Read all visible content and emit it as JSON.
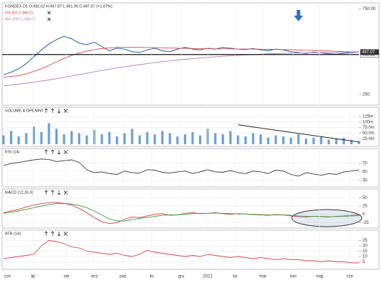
{
  "chart_data": [
    {
      "type": "line",
      "title": "NGNDEX D1 O:492.62 H:497.87 L:491.99 C:497.07 (+1.07%)",
      "xlim": [
        0,
        47
      ],
      "ylim": [
        200,
        760
      ],
      "yticks": [
        250,
        {
          "value": 750,
          "label": "750.00"
        }
      ],
      "hline": {
        "value": 483.13,
        "label": "483.13"
      },
      "last_label": {
        "value": 497.07,
        "label": "497.07"
      },
      "series": [
        {
          "color": "#1f5fa6",
          "values": [
            365,
            380,
            400,
            430,
            470,
            510,
            545,
            570,
            590,
            575,
            550,
            540,
            555,
            530,
            505,
            520,
            515,
            500,
            495,
            510,
            520,
            505,
            500,
            515,
            525,
            515,
            510,
            520,
            515,
            525,
            520,
            515,
            512,
            518,
            510,
            505,
            515,
            510,
            500,
            495,
            490,
            498,
            493,
            488,
            485,
            490,
            494,
            497.07
          ]
        },
        {
          "name": "MA (50 C,MA,0)",
          "color": "#d9434a",
          "values": [
            350,
            355,
            360,
            370,
            385,
            400,
            420,
            440,
            460,
            478,
            492,
            503,
            512,
            518,
            522,
            525,
            526,
            526,
            525,
            524,
            523,
            522,
            521,
            520,
            519,
            518,
            517,
            517,
            516,
            516,
            516,
            515,
            515,
            515,
            514,
            513,
            513,
            512,
            511,
            510,
            508,
            507,
            505,
            504,
            502,
            500,
            499,
            498
          ]
        },
        {
          "name": "MA (200 C,MA,0)",
          "color": "#a77fcc",
          "values": [
            300,
            305,
            310,
            316,
            322,
            328,
            335,
            342,
            350,
            358,
            366,
            374,
            382,
            390,
            398,
            405,
            412,
            418,
            424,
            430,
            436,
            441,
            446,
            451,
            455,
            459,
            463,
            467,
            470,
            473,
            476,
            479,
            481,
            483,
            485,
            487,
            489,
            490,
            491,
            492,
            493,
            494,
            494,
            495,
            495,
            496,
            496,
            496
          ]
        }
      ]
    },
    {
      "type": "bar",
      "title": "VOLUME & OPENINT",
      "xlim": [
        0,
        47
      ],
      "ylim": [
        0,
        135
      ],
      "color": "#6d9fd6",
      "yticks": [
        {
          "value": 25,
          "label": "25.0m"
        },
        {
          "value": 50,
          "label": "50.0m"
        },
        {
          "value": 75,
          "label": "75.0m"
        },
        {
          "value": 100,
          "label": "100m"
        },
        {
          "value": 125,
          "label": "125m"
        }
      ],
      "values": [
        40,
        60,
        35,
        50,
        80,
        55,
        95,
        70,
        45,
        60,
        50,
        40,
        65,
        45,
        55,
        35,
        50,
        70,
        40,
        55,
        45,
        60,
        50,
        35,
        45,
        55,
        40,
        70,
        50,
        45,
        60,
        40,
        35,
        50,
        45,
        30,
        40,
        35,
        30,
        45,
        25,
        30,
        35,
        20,
        25,
        30,
        20,
        15
      ],
      "trend_x": [
        31,
        47
      ],
      "trend_values": [
        88,
        10
      ]
    },
    {
      "type": "line",
      "title": "RSI (14)",
      "xlim": [
        0,
        47
      ],
      "ylim": [
        20,
        88
      ],
      "yticks": [
        30,
        50,
        70
      ],
      "series": [
        {
          "color": "#333333",
          "values": [
            65,
            70,
            72,
            75,
            78,
            80,
            79,
            74,
            76,
            78,
            72,
            55,
            48,
            50,
            46,
            44,
            52,
            48,
            47,
            55,
            54,
            49,
            47,
            50,
            52,
            46,
            50,
            55,
            50,
            49,
            53,
            48,
            46,
            52,
            50,
            46,
            54,
            52,
            44,
            40,
            48,
            45,
            42,
            46,
            44,
            50,
            52,
            55
          ]
        }
      ]
    },
    {
      "type": "line",
      "title": "MACD (12,26,9)",
      "xlim": [
        0,
        47
      ],
      "ylim": [
        -35,
        55
      ],
      "yticks": [
        -25,
        0,
        25,
        50
      ],
      "series": [
        {
          "color": "#d23b3b",
          "values": [
            5,
            10,
            15,
            22,
            28,
            32,
            35,
            36,
            33,
            28,
            18,
            5,
            -10,
            -22,
            -28,
            -25,
            -15,
            -8,
            -10,
            -5,
            0,
            2,
            -3,
            -2,
            3,
            5,
            2,
            3,
            5,
            2,
            0,
            2,
            1,
            -1,
            -2,
            -3,
            -1,
            -2,
            -5,
            -7,
            -8,
            -6,
            -7,
            -8,
            -6,
            -5,
            -3,
            -1
          ]
        },
        {
          "color": "#3a9a3a",
          "values": [
            3,
            6,
            10,
            15,
            20,
            25,
            29,
            32,
            33,
            31,
            27,
            20,
            10,
            -2,
            -14,
            -20,
            -20,
            -16,
            -12,
            -10,
            -6,
            -3,
            -2,
            -2,
            0,
            2,
            3,
            3,
            4,
            3,
            2,
            1,
            1,
            0,
            -1,
            -2,
            -2,
            -2,
            -3,
            -5,
            -6,
            -6,
            -6,
            -7,
            -7,
            -6,
            -5,
            -4
          ]
        }
      ]
    },
    {
      "type": "line",
      "title": "ATR (14)",
      "xlim": [
        0,
        47
      ],
      "ylim": [
        0,
        28
      ],
      "yticks": [
        5,
        10,
        15,
        20,
        25
      ],
      "xticks": [
        {
          "value": 0.5,
          "label": "cze"
        },
        {
          "value": 3.9,
          "label": "lip"
        },
        {
          "value": 8.3,
          "label": "sie"
        },
        {
          "value": 12,
          "label": "wrz"
        },
        {
          "value": 15.8,
          "label": "paź"
        },
        {
          "value": 19.6,
          "label": "lis"
        },
        {
          "value": 23.5,
          "label": "gru"
        },
        {
          "value": 27,
          "label": "2021"
        },
        {
          "value": 30.6,
          "label": "lut"
        },
        {
          "value": 34.3,
          "label": "mar"
        },
        {
          "value": 38.3,
          "label": "kwi"
        },
        {
          "value": 41.8,
          "label": "maj"
        },
        {
          "value": 45.8,
          "label": "cze"
        }
      ],
      "series": [
        {
          "color": "#d9434a",
          "values": [
            8,
            9,
            10,
            11,
            12,
            20,
            25,
            24,
            22,
            19,
            18,
            15,
            14,
            13,
            12,
            13,
            11,
            10,
            12,
            16,
            14,
            13,
            12,
            11,
            10,
            11,
            10,
            12,
            11,
            10,
            9,
            10,
            9,
            8,
            9,
            8,
            7,
            8,
            7,
            7,
            6,
            6,
            5,
            6,
            5,
            5,
            4,
            4
          ]
        }
      ]
    }
  ]
}
